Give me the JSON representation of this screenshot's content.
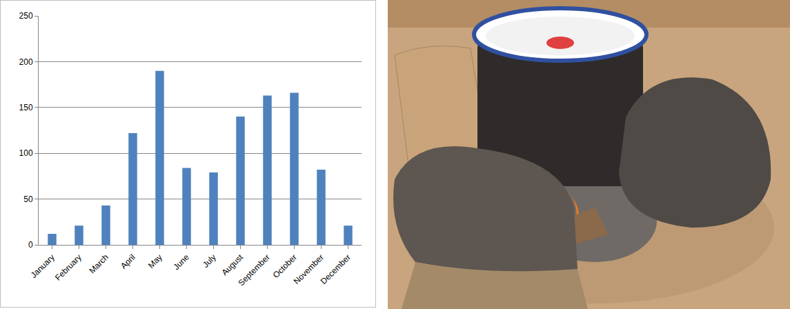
{
  "chart_data": {
    "type": "bar",
    "categories": [
      "January",
      "February",
      "March",
      "April",
      "May",
      "June",
      "July",
      "August",
      "September",
      "October",
      "November",
      "December"
    ],
    "values": [
      12,
      21,
      43,
      122,
      190,
      84,
      79,
      140,
      163,
      166,
      82,
      21
    ],
    "color": "#4f81bd",
    "ylim": [
      0,
      250
    ],
    "yticks": [
      0,
      50,
      100,
      150,
      200,
      250
    ],
    "grid": true
  }
}
